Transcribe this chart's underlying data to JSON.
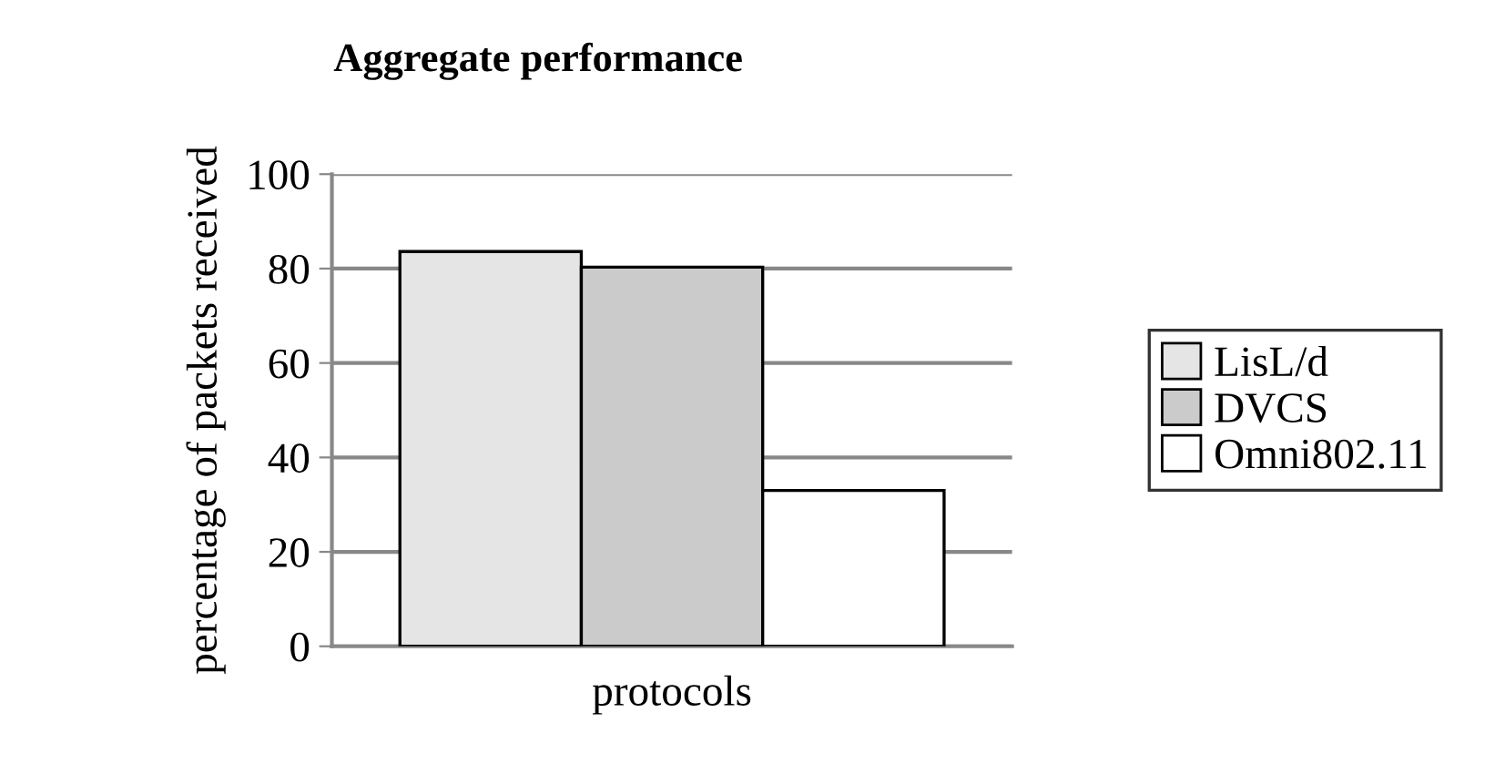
{
  "chart_data": {
    "type": "bar",
    "title": "Aggregate performance",
    "xlabel": "protocols",
    "ylabel": "percentage of packets received",
    "categories": [
      null
    ],
    "series": [
      {
        "name": "LisL/d",
        "color": "#e5e5e5",
        "values": [
          83.6
        ]
      },
      {
        "name": "DVCS",
        "color": "#cbcbcb",
        "values": [
          80.3
        ]
      },
      {
        "name": "Omni802.11",
        "color": "#ffffff",
        "values": [
          33.0
        ]
      }
    ],
    "ylim": [
      0,
      100
    ],
    "yticks": [
      0,
      20,
      40,
      60,
      80,
      100
    ],
    "grid": "y",
    "legend": "right"
  }
}
